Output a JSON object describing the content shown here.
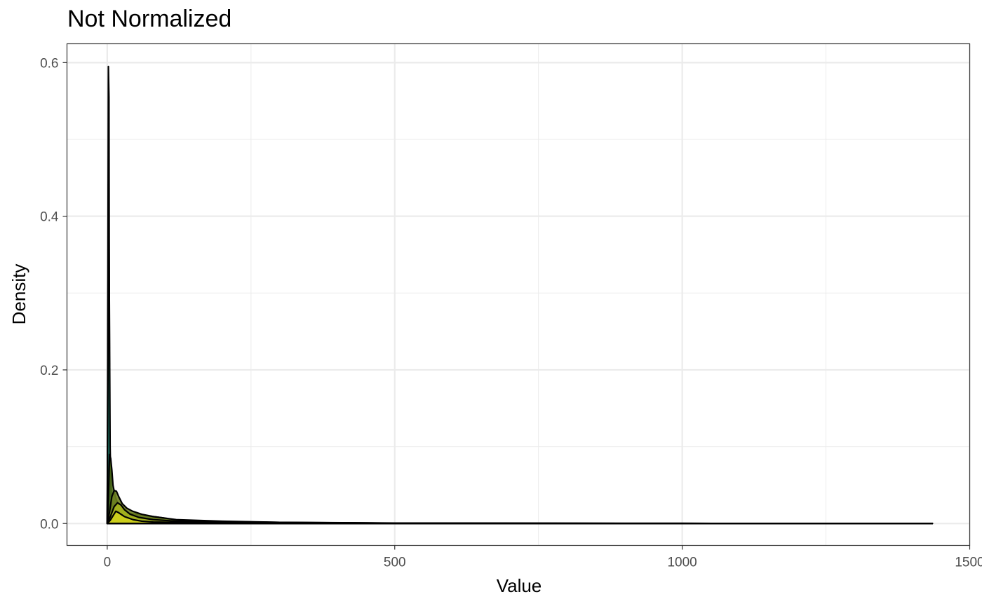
{
  "chart_data": {
    "type": "area",
    "title": "Not Normalized",
    "xlabel": "Value",
    "ylabel": "Density",
    "xlim": [
      -70,
      1500
    ],
    "ylim": [
      -0.0285,
      0.6245
    ],
    "x_ticks": [
      0,
      500,
      1000,
      1500
    ],
    "x_tick_labels": [
      "0",
      "500",
      "1000",
      "1500"
    ],
    "y_ticks": [
      0.0,
      0.2,
      0.4,
      0.6
    ],
    "y_tick_labels": [
      "0.0",
      "0.2",
      "0.4",
      "0.6"
    ],
    "grid": true,
    "legend": "none",
    "series": [
      {
        "color": "#3b1b5a",
        "fill_opacity": 0.85,
        "x": [
          0,
          1,
          2,
          3,
          4,
          6,
          10,
          30,
          100,
          500,
          1000,
          1435
        ],
        "y": [
          0.0,
          0.25,
          0.595,
          0.555,
          0.12,
          0.02,
          0.005,
          0.001,
          0.0003,
          0.0001,
          5e-05,
          0.0
        ]
      },
      {
        "color": "#2f6c8e",
        "fill_opacity": 0.85,
        "x": [
          0,
          1,
          2,
          3,
          4,
          6,
          10,
          30,
          100,
          500,
          1000,
          1435
        ],
        "y": [
          0.0,
          0.2,
          0.442,
          0.38,
          0.1,
          0.02,
          0.006,
          0.002,
          0.0005,
          0.0001,
          5e-05,
          0.0
        ]
      },
      {
        "color": "#26a085",
        "fill_opacity": 0.85,
        "x": [
          0,
          1,
          2,
          3,
          4,
          5,
          7,
          10,
          30,
          100,
          500,
          1000,
          1435
        ],
        "y": [
          0.0,
          0.15,
          0.307,
          0.38,
          0.25,
          0.1,
          0.03,
          0.01,
          0.002,
          0.0005,
          0.0001,
          5e-05,
          0.0
        ]
      },
      {
        "color": "#4b6b1a",
        "fill_opacity": 0.9,
        "x": [
          0,
          2,
          4,
          6,
          8,
          10,
          14,
          20,
          30,
          40,
          60,
          80,
          100,
          120,
          200,
          300,
          500,
          1000,
          1435
        ],
        "y": [
          0.0,
          0.03,
          0.09,
          0.085,
          0.07,
          0.05,
          0.035,
          0.022,
          0.016,
          0.013,
          0.011,
          0.009,
          0.007,
          0.004,
          0.0025,
          0.0015,
          0.0006,
          0.0002,
          0.0
        ]
      },
      {
        "color": "#6d7f1f",
        "fill_opacity": 0.9,
        "x": [
          0,
          4,
          8,
          12,
          16,
          20,
          26,
          34,
          44,
          60,
          80,
          120,
          200,
          300,
          500,
          1000,
          1435
        ],
        "y": [
          0.0,
          0.015,
          0.035,
          0.043,
          0.042,
          0.035,
          0.026,
          0.02,
          0.016,
          0.012,
          0.009,
          0.005,
          0.003,
          0.0015,
          0.0005,
          0.0002,
          0.0
        ]
      },
      {
        "color": "#a7b51e",
        "fill_opacity": 0.9,
        "x": [
          0,
          6,
          12,
          18,
          24,
          30,
          40,
          55,
          80,
          120,
          200,
          300,
          500,
          1000,
          1435
        ],
        "y": [
          0.0,
          0.01,
          0.022,
          0.027,
          0.024,
          0.018,
          0.012,
          0.008,
          0.005,
          0.003,
          0.002,
          0.001,
          0.0005,
          0.0001,
          0.0
        ]
      },
      {
        "color": "#cfd01c",
        "fill_opacity": 0.95,
        "x": [
          0,
          5,
          10,
          15,
          20,
          30,
          45,
          60,
          80,
          120,
          200,
          300,
          500,
          1000,
          1435
        ],
        "y": [
          0.0,
          0.004,
          0.01,
          0.016,
          0.014,
          0.009,
          0.005,
          0.003,
          0.002,
          0.0015,
          0.001,
          0.0007,
          0.0003,
          0.0001,
          0.0
        ]
      }
    ]
  }
}
